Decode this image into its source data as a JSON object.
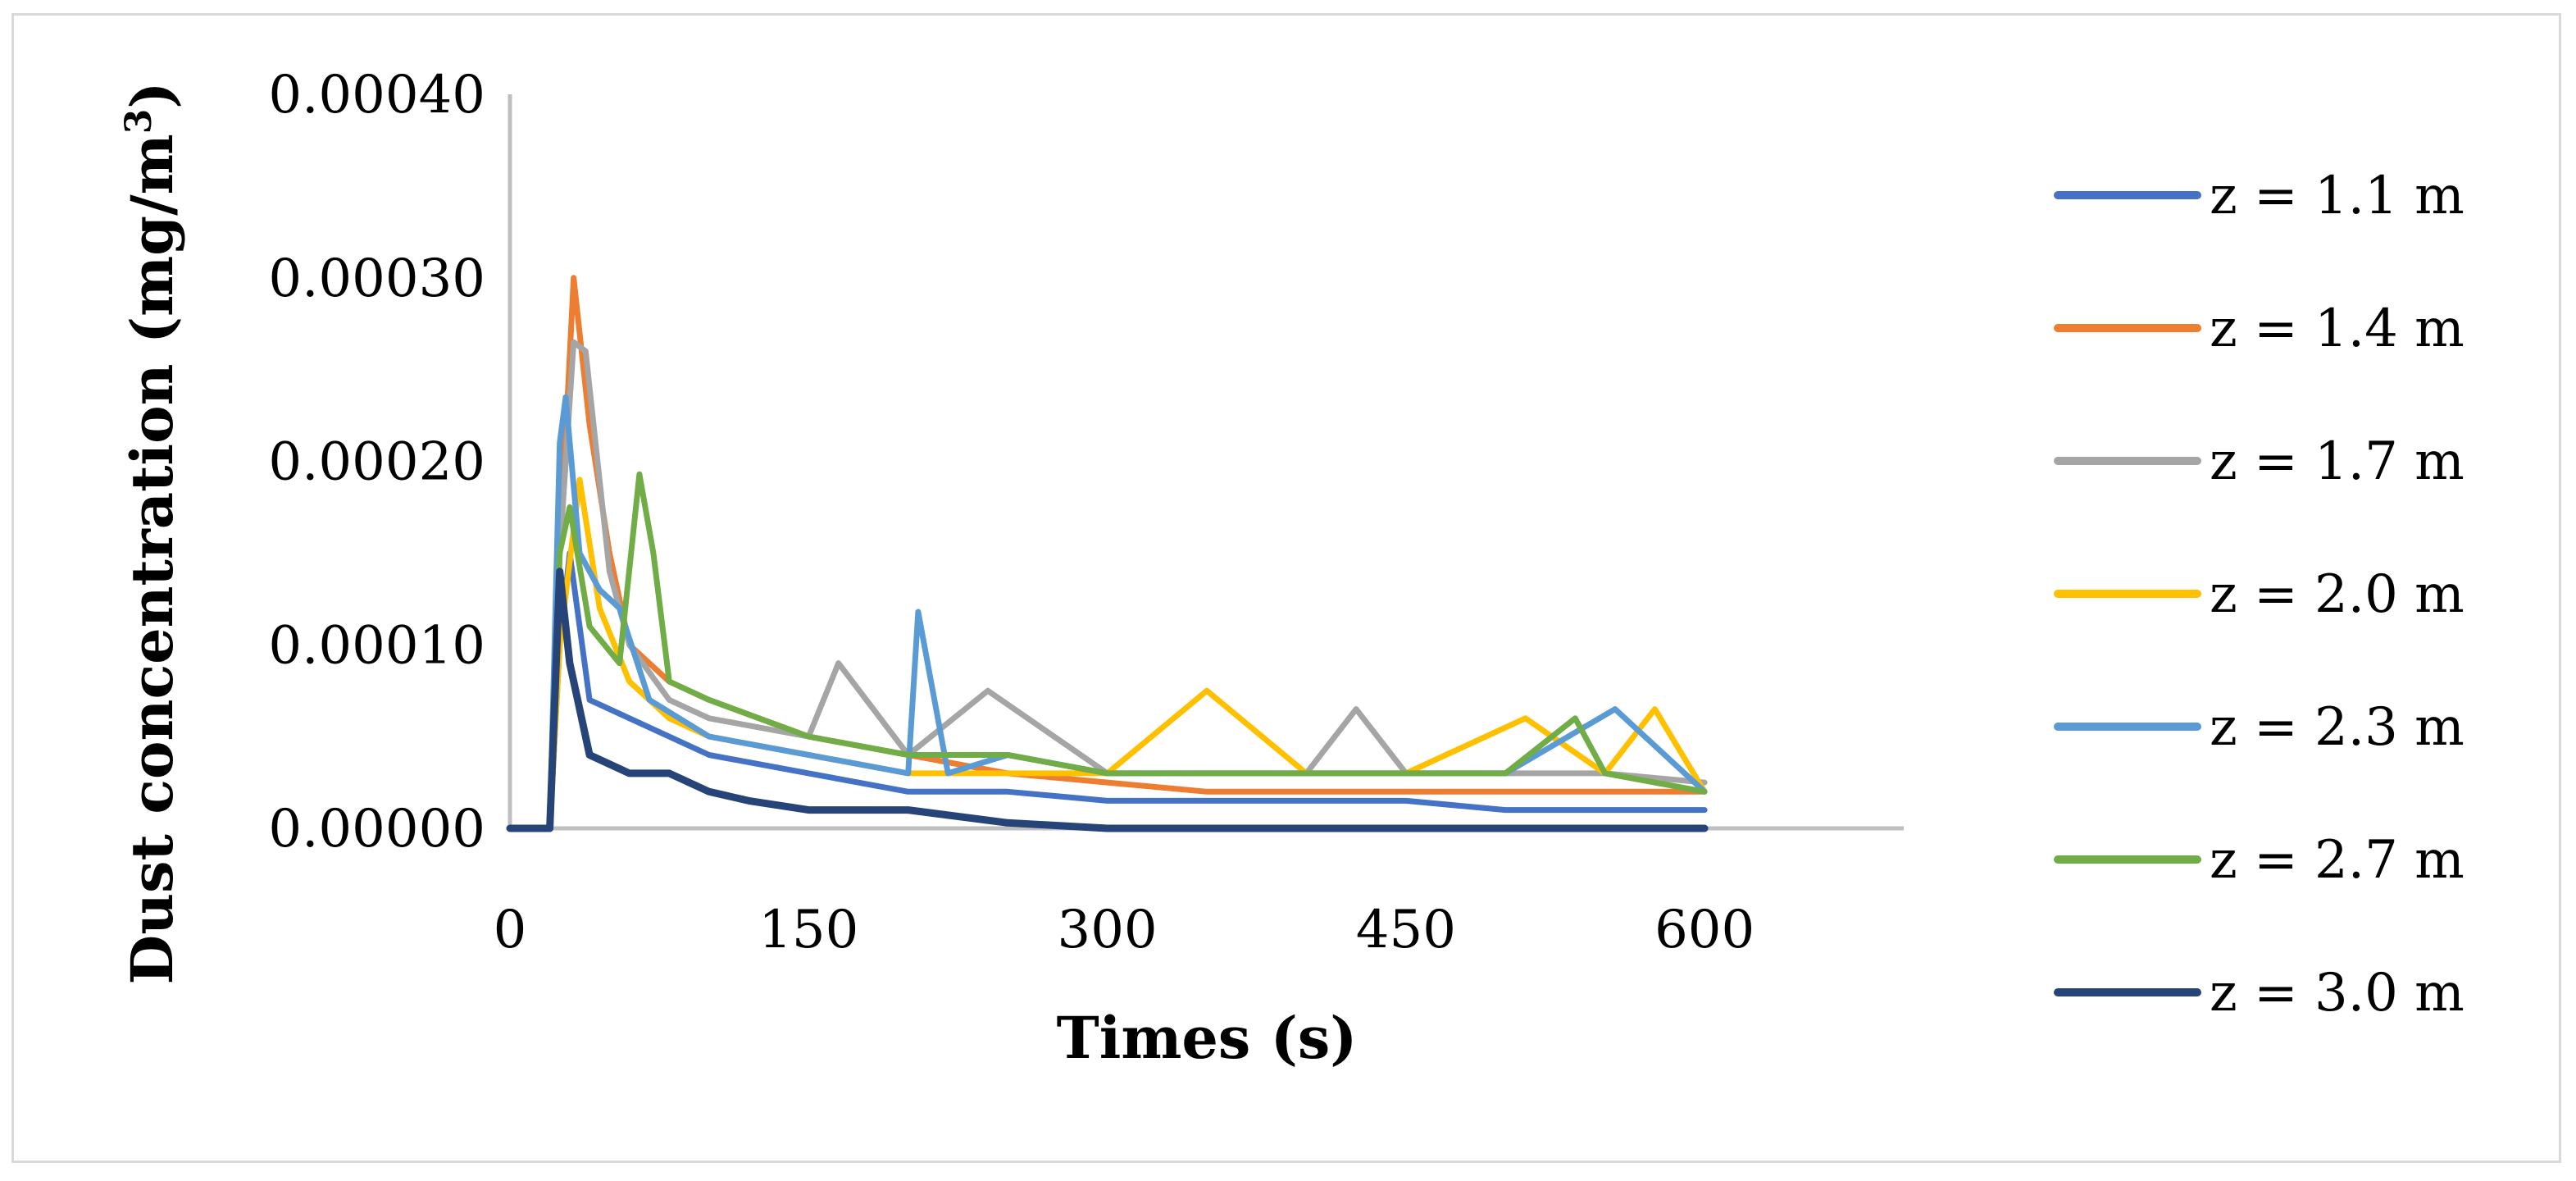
{
  "chart_data": {
    "type": "line",
    "title": "",
    "xlabel": "Times (s)",
    "ylabel": "Dust concentration (mg/m",
    "ylabel_sup": "3",
    "ylabel_end": ")",
    "xlim": [
      0,
      700
    ],
    "ylim": [
      0,
      0.0004
    ],
    "x_ticks": [
      0,
      150,
      300,
      450,
      600
    ],
    "x_tick_labels": [
      "0",
      "150",
      "300",
      "450",
      "600"
    ],
    "y_ticks": [
      0,
      0.0001,
      0.0002,
      0.0003,
      0.0004
    ],
    "y_tick_labels": [
      "0.00000",
      "0.00010",
      "0.00020",
      "0.00030",
      "0.00040"
    ],
    "grid": false,
    "legend_position": "right",
    "series": [
      {
        "name": "z = 1.1 m",
        "color": "#4472c4",
        "points": [
          [
            0,
            0
          ],
          [
            20,
            0
          ],
          [
            25,
            0.0001
          ],
          [
            30,
            0.00015
          ],
          [
            40,
            7e-05
          ],
          [
            60,
            6e-05
          ],
          [
            100,
            4e-05
          ],
          [
            150,
            3e-05
          ],
          [
            200,
            2e-05
          ],
          [
            250,
            2e-05
          ],
          [
            300,
            1.5e-05
          ],
          [
            350,
            1.5e-05
          ],
          [
            400,
            1.5e-05
          ],
          [
            450,
            1.5e-05
          ],
          [
            500,
            1e-05
          ],
          [
            550,
            1e-05
          ],
          [
            600,
            1e-05
          ]
        ]
      },
      {
        "name": "z = 1.4 m",
        "color": "#ed7d31",
        "points": [
          [
            0,
            0
          ],
          [
            20,
            0
          ],
          [
            25,
            0.00015
          ],
          [
            32,
            0.0003
          ],
          [
            40,
            0.00022
          ],
          [
            50,
            0.00015
          ],
          [
            60,
            0.0001
          ],
          [
            80,
            8e-05
          ],
          [
            100,
            7e-05
          ],
          [
            150,
            5e-05
          ],
          [
            200,
            4e-05
          ],
          [
            250,
            3e-05
          ],
          [
            300,
            2.5e-05
          ],
          [
            350,
            2e-05
          ],
          [
            400,
            2e-05
          ],
          [
            450,
            2e-05
          ],
          [
            500,
            2e-05
          ],
          [
            550,
            2e-05
          ],
          [
            600,
            2e-05
          ]
        ]
      },
      {
        "name": "z = 1.7 m",
        "color": "#a5a5a5",
        "points": [
          [
            0,
            0
          ],
          [
            20,
            0
          ],
          [
            25,
            0.00015
          ],
          [
            32,
            0.000265
          ],
          [
            38,
            0.00026
          ],
          [
            50,
            0.00014
          ],
          [
            60,
            0.0001
          ],
          [
            80,
            7e-05
          ],
          [
            100,
            6e-05
          ],
          [
            150,
            5e-05
          ],
          [
            165,
            9e-05
          ],
          [
            200,
            4e-05
          ],
          [
            240,
            7.5e-05
          ],
          [
            300,
            3e-05
          ],
          [
            350,
            3e-05
          ],
          [
            400,
            3e-05
          ],
          [
            425,
            6.5e-05
          ],
          [
            450,
            3e-05
          ],
          [
            500,
            3e-05
          ],
          [
            550,
            3e-05
          ],
          [
            600,
            2.5e-05
          ]
        ]
      },
      {
        "name": "z = 2.0 m",
        "color": "#ffc000",
        "points": [
          [
            0,
            0
          ],
          [
            20,
            0
          ],
          [
            25,
            0.0001
          ],
          [
            35,
            0.00019
          ],
          [
            45,
            0.00012
          ],
          [
            60,
            8e-05
          ],
          [
            80,
            6e-05
          ],
          [
            100,
            5e-05
          ],
          [
            150,
            4e-05
          ],
          [
            200,
            3e-05
          ],
          [
            250,
            3e-05
          ],
          [
            300,
            3e-05
          ],
          [
            350,
            7.5e-05
          ],
          [
            400,
            3e-05
          ],
          [
            450,
            3e-05
          ],
          [
            510,
            6e-05
          ],
          [
            550,
            3e-05
          ],
          [
            575,
            6.5e-05
          ],
          [
            600,
            2e-05
          ]
        ]
      },
      {
        "name": "z = 2.3 m",
        "color": "#5b9bd5",
        "points": [
          [
            0,
            0
          ],
          [
            20,
            0
          ],
          [
            25,
            0.00021
          ],
          [
            28,
            0.000235
          ],
          [
            35,
            0.00015
          ],
          [
            45,
            0.00013
          ],
          [
            55,
            0.00012
          ],
          [
            70,
            7e-05
          ],
          [
            100,
            5e-05
          ],
          [
            150,
            4e-05
          ],
          [
            200,
            3e-05
          ],
          [
            205,
            0.000118
          ],
          [
            220,
            3e-05
          ],
          [
            250,
            4e-05
          ],
          [
            300,
            3e-05
          ],
          [
            350,
            3e-05
          ],
          [
            400,
            3e-05
          ],
          [
            450,
            3e-05
          ],
          [
            500,
            3e-05
          ],
          [
            555,
            6.5e-05
          ],
          [
            600,
            2e-05
          ]
        ]
      },
      {
        "name": "z = 2.7 m",
        "color": "#70ad47",
        "points": [
          [
            0,
            0
          ],
          [
            20,
            0
          ],
          [
            25,
            0.00015
          ],
          [
            30,
            0.000175
          ],
          [
            40,
            0.00011
          ],
          [
            55,
            9e-05
          ],
          [
            65,
            0.000193
          ],
          [
            72,
            0.00015
          ],
          [
            80,
            8e-05
          ],
          [
            100,
            7e-05
          ],
          [
            150,
            5e-05
          ],
          [
            200,
            4e-05
          ],
          [
            250,
            4e-05
          ],
          [
            300,
            3e-05
          ],
          [
            350,
            3e-05
          ],
          [
            400,
            3e-05
          ],
          [
            450,
            3e-05
          ],
          [
            500,
            3e-05
          ],
          [
            535,
            6e-05
          ],
          [
            550,
            3e-05
          ],
          [
            600,
            2e-05
          ]
        ]
      },
      {
        "name": "z = 3.0 m",
        "color": "#264478",
        "points": [
          [
            0,
            0
          ],
          [
            20,
            0
          ],
          [
            25,
            0.00014
          ],
          [
            30,
            9e-05
          ],
          [
            40,
            4e-05
          ],
          [
            60,
            3e-05
          ],
          [
            80,
            3e-05
          ],
          [
            100,
            2e-05
          ],
          [
            120,
            1.5e-05
          ],
          [
            150,
            1e-05
          ],
          [
            200,
            1e-05
          ],
          [
            250,
            3e-06
          ],
          [
            300,
            0
          ],
          [
            350,
            0
          ],
          [
            400,
            0
          ],
          [
            450,
            0
          ],
          [
            500,
            0
          ],
          [
            550,
            0
          ],
          [
            600,
            0
          ]
        ]
      }
    ]
  }
}
